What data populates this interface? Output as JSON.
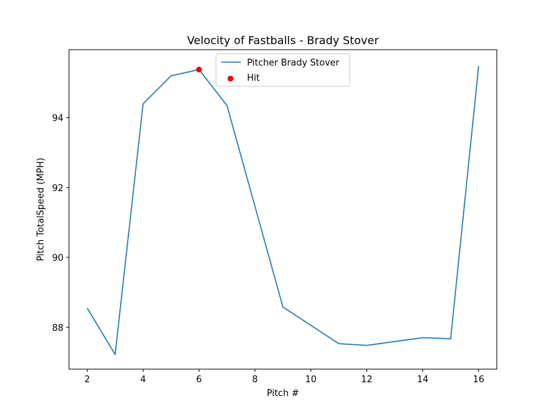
{
  "chart_data": {
    "type": "line",
    "title": "Velocity of Fastballs - Brady Stover",
    "xlabel": "Pitch #",
    "ylabel": "Pitch TotalSpeed (MPH)",
    "xlim": [
      1.35,
      16.65
    ],
    "ylim": [
      86.8,
      95.95
    ],
    "xticks": [
      2,
      4,
      6,
      8,
      10,
      12,
      14,
      16
    ],
    "yticks": [
      88,
      90,
      92,
      94
    ],
    "legend_position": "upper center",
    "series": [
      {
        "name": "Pitcher Brady Stover",
        "type": "line",
        "color": "#1f77b4",
        "x": [
          2,
          3,
          4,
          5,
          6,
          7,
          9,
          11,
          12,
          14,
          15,
          16
        ],
        "y": [
          88.55,
          87.22,
          94.4,
          95.2,
          95.38,
          94.35,
          88.58,
          87.53,
          87.48,
          87.7,
          87.67,
          95.48
        ]
      },
      {
        "name": "Hit",
        "type": "scatter",
        "color": "#ff0000",
        "x": [
          6
        ],
        "y": [
          95.38
        ]
      }
    ]
  }
}
